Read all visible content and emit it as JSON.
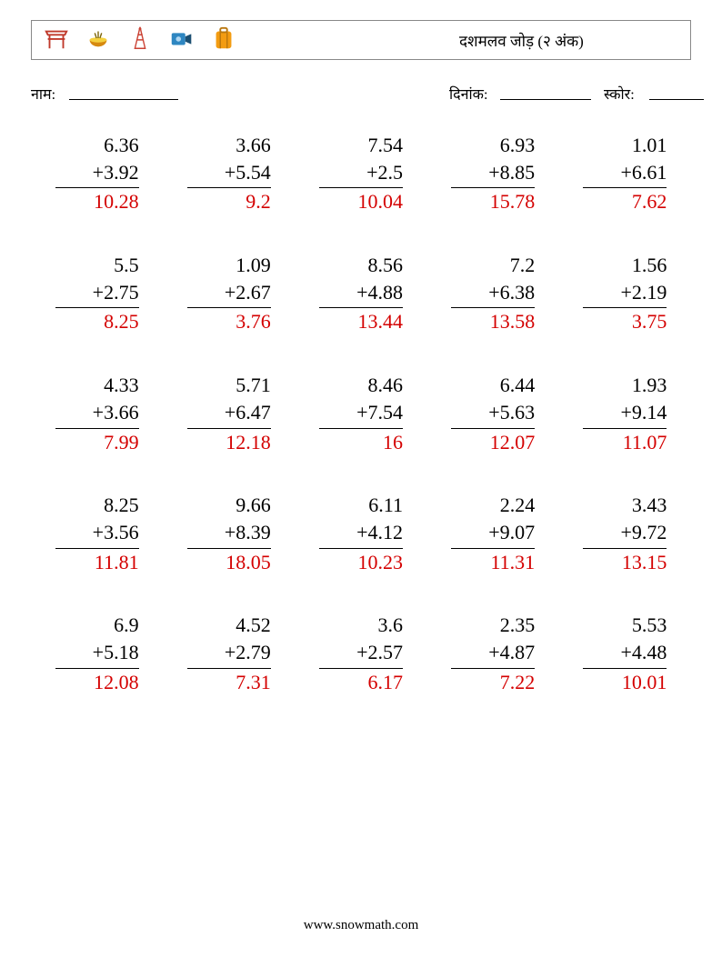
{
  "title": "दशमलव जोड़ (२ अंक)",
  "labels": {
    "name": "नाम:",
    "date": "दिनांक:",
    "score": "स्कोर:"
  },
  "footer": "www.snowmath.com",
  "colors": {
    "answer": "#d40000",
    "text": "#000000",
    "bg": "#ffffff",
    "border": "#888888"
  },
  "style": {
    "font_family": "Georgia, serif",
    "problem_fontsize": 22,
    "label_fontsize": 16,
    "title_fontsize": 17,
    "cols": 5,
    "rows": 5,
    "op": "+"
  },
  "problems": [
    {
      "a": "6.36",
      "b": "3.92",
      "ans": "10.28"
    },
    {
      "a": "3.66",
      "b": "5.54",
      "ans": "9.2"
    },
    {
      "a": "7.54",
      "b": "2.5",
      "ans": "10.04"
    },
    {
      "a": "6.93",
      "b": "8.85",
      "ans": "15.78"
    },
    {
      "a": "1.01",
      "b": "6.61",
      "ans": "7.62"
    },
    {
      "a": "5.5",
      "b": "2.75",
      "ans": "8.25"
    },
    {
      "a": "1.09",
      "b": "2.67",
      "ans": "3.76"
    },
    {
      "a": "8.56",
      "b": "4.88",
      "ans": "13.44"
    },
    {
      "a": "7.2",
      "b": "6.38",
      "ans": "13.58"
    },
    {
      "a": "1.56",
      "b": "2.19",
      "ans": "3.75"
    },
    {
      "a": "4.33",
      "b": "3.66",
      "ans": "7.99"
    },
    {
      "a": "5.71",
      "b": "6.47",
      "ans": "12.18"
    },
    {
      "a": "8.46",
      "b": "7.54",
      "ans": "16"
    },
    {
      "a": "6.44",
      "b": "5.63",
      "ans": "12.07"
    },
    {
      "a": "1.93",
      "b": "9.14",
      "ans": "11.07"
    },
    {
      "a": "8.25",
      "b": "3.56",
      "ans": "11.81"
    },
    {
      "a": "9.66",
      "b": "8.39",
      "ans": "18.05"
    },
    {
      "a": "6.11",
      "b": "4.12",
      "ans": "10.23"
    },
    {
      "a": "2.24",
      "b": "9.07",
      "ans": "11.31"
    },
    {
      "a": "3.43",
      "b": "9.72",
      "ans": "13.15"
    },
    {
      "a": "6.9",
      "b": "5.18",
      "ans": "12.08"
    },
    {
      "a": "4.52",
      "b": "2.79",
      "ans": "7.31"
    },
    {
      "a": "3.6",
      "b": "2.57",
      "ans": "6.17"
    },
    {
      "a": "2.35",
      "b": "4.87",
      "ans": "7.22"
    },
    {
      "a": "5.53",
      "b": "4.48",
      "ans": "10.01"
    }
  ]
}
